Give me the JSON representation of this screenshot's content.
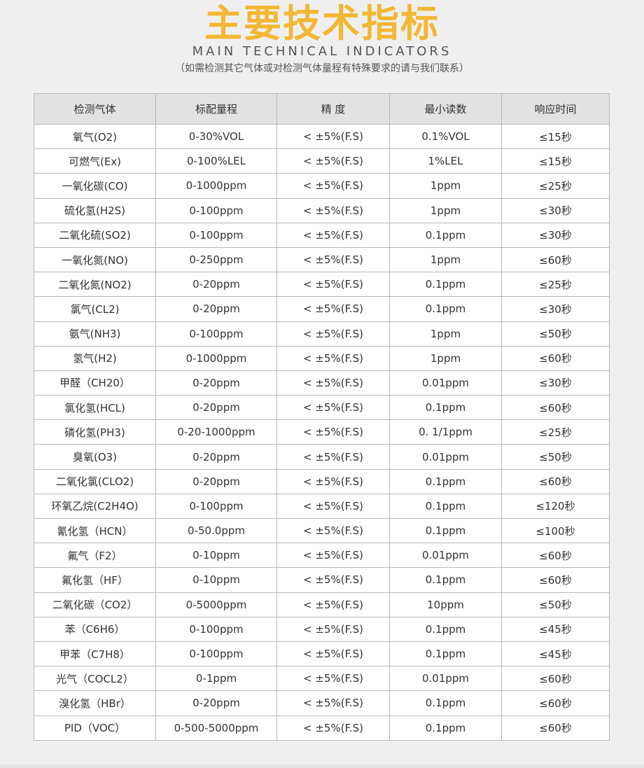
{
  "title": "主要技术指标",
  "subtitle": "MAIN TECHNICAL INDICATORS",
  "note": "（如需检测其它气体或对检测气体量程有特殊要求的请与我们联系）",
  "colors": {
    "title": "#f2b733",
    "header_bg": "#e2e2e2",
    "page_bg": "#efefef"
  },
  "table": {
    "headers": [
      "检测气体",
      "标配量程",
      "精 度",
      "最小读数",
      "响应时间"
    ],
    "rows": [
      [
        "氧气(O2)",
        "0-30%VOL",
        "< ±5%(F.S)",
        "0.1%VOL",
        "≤15秒"
      ],
      [
        "可燃气(Ex)",
        "0-100%LEL",
        "< ±5%(F.S)",
        "1%LEL",
        "≤15秒"
      ],
      [
        "一氧化碳(CO)",
        "0-1000ppm",
        "< ±5%(F.S)",
        "1ppm",
        "≤25秒"
      ],
      [
        "硫化氢(H2S)",
        "0-100ppm",
        "< ±5%(F.S)",
        "1ppm",
        "≤30秒"
      ],
      [
        "二氧化硫(SO2)",
        "0-100ppm",
        "< ±5%(F.S)",
        "0.1ppm",
        "≤30秒"
      ],
      [
        "一氧化氮(NO)",
        "0-250ppm",
        "< ±5%(F.S)",
        "1ppm",
        "≤60秒"
      ],
      [
        "二氧化氮(NO2)",
        "0-20ppm",
        "< ±5%(F.S)",
        "0.1ppm",
        "≤25秒"
      ],
      [
        "氯气(CL2)",
        "0-20ppm",
        "< ±5%(F.S)",
        "0.1ppm",
        "≤30秒"
      ],
      [
        "氨气(NH3)",
        "0-100ppm",
        "< ±5%(F.S)",
        "1ppm",
        "≤50秒"
      ],
      [
        "氢气(H2)",
        "0-1000ppm",
        "< ±5%(F.S)",
        "1ppm",
        "≤60秒"
      ],
      [
        "甲醛（CH20）",
        "0-20ppm",
        "< ±5%(F.S)",
        "0.01ppm",
        "≤30秒"
      ],
      [
        "氯化氢(HCL)",
        "0-20ppm",
        "< ±5%(F.S)",
        "0.1ppm",
        "≤60秒"
      ],
      [
        "磷化氢(PH3)",
        "0-20-1000ppm",
        "< ±5%(F.S)",
        "0. 1/1ppm",
        "≤25秒"
      ],
      [
        "臭氧(O3)",
        "0-20ppm",
        "< ±5%(F.S)",
        "0.01ppm",
        "≤50秒"
      ],
      [
        "二氧化氯(CLO2)",
        "0-20ppm",
        "< ±5%(F.S)",
        "0.1ppm",
        "≤60秒"
      ],
      [
        "环氧乙烷(C2H4O)",
        "0-100ppm",
        "< ±5%(F.S)",
        "0.1ppm",
        "≤120秒"
      ],
      [
        "氰化氢（HCN）",
        "0-50.0ppm",
        "< ±5%(F.S)",
        "0.1ppm",
        "≤100秒"
      ],
      [
        "氟气（F2）",
        "0-10ppm",
        "< ±5%(F.S)",
        "0.01ppm",
        "≤60秒"
      ],
      [
        "氟化氢（HF）",
        "0-10ppm",
        "< ±5%(F.S)",
        "0.1ppm",
        "≤60秒"
      ],
      [
        "二氧化碳（CO2）",
        "0-5000ppm",
        "< ±5%(F.S)",
        "10ppm",
        "≤50秒"
      ],
      [
        "苯（C6H6）",
        "0-100ppm",
        "< ±5%(F.S)",
        "0.1ppm",
        "≤45秒"
      ],
      [
        "甲苯（C7H8）",
        "0-100ppm",
        "< ±5%(F.S)",
        "0.1ppm",
        "≤45秒"
      ],
      [
        "光气（COCL2）",
        "0-1ppm",
        "< ±5%(F.S)",
        "0.01ppm",
        "≤60秒"
      ],
      [
        "溴化氢（HBr）",
        "0-20ppm",
        "< ±5%(F.S)",
        "0.1ppm",
        "≤60秒"
      ],
      [
        "PID（VOC）",
        "0-500-5000ppm",
        "< ±5%(F.S)",
        "0.1ppm",
        "≤60秒"
      ]
    ]
  }
}
